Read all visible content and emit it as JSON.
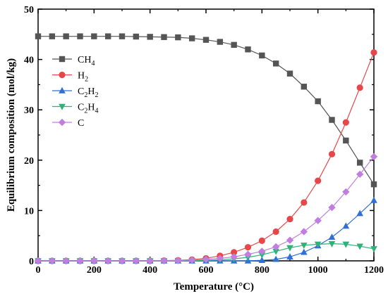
{
  "chart_data": {
    "type": "line",
    "xlabel": "Temperature (°C)",
    "ylabel": "Equilibrium composition (mol/kg)",
    "xlim": [
      0,
      1200
    ],
    "ylim": [
      0,
      50
    ],
    "xticks": [
      0,
      200,
      400,
      600,
      800,
      1000,
      1200
    ],
    "yticks": [
      0,
      10,
      20,
      30,
      40,
      50
    ],
    "grid": false,
    "legend_position": "top-left",
    "x": [
      0,
      50,
      100,
      150,
      200,
      250,
      300,
      350,
      400,
      450,
      500,
      550,
      600,
      650,
      700,
      750,
      800,
      850,
      900,
      950,
      1000,
      1050,
      1100,
      1150,
      1200
    ],
    "series": [
      {
        "name": "CH4",
        "sub": "4",
        "base": "CH",
        "color": "#555555",
        "marker": "square",
        "values": [
          44.6,
          44.6,
          44.6,
          44.6,
          44.6,
          44.6,
          44.6,
          44.55,
          44.5,
          44.45,
          44.4,
          44.2,
          43.9,
          43.5,
          42.9,
          42.0,
          40.8,
          39.2,
          37.2,
          34.6,
          31.7,
          28.0,
          23.9,
          19.5,
          15.2
        ]
      },
      {
        "name": "H2",
        "sub": "2",
        "base": "H",
        "color": "#e8474a",
        "marker": "circle",
        "values": [
          0,
          0,
          0,
          0,
          0,
          0,
          0,
          0,
          0,
          0.05,
          0.1,
          0.25,
          0.5,
          1.0,
          1.7,
          2.7,
          4.0,
          5.8,
          8.3,
          11.6,
          15.9,
          21.2,
          27.5,
          34.4,
          41.4
        ]
      },
      {
        "name": "C2H2",
        "sub": "2",
        "base": "C",
        "sub_mid": "2",
        "base2": "H",
        "color": "#2f6fd6",
        "marker": "triangle-up",
        "values": [
          0,
          0,
          0,
          0,
          0,
          0,
          0,
          0,
          0,
          0,
          0,
          0,
          0,
          0,
          0,
          0,
          0.1,
          0.3,
          0.8,
          1.7,
          3.0,
          4.7,
          6.9,
          9.4,
          12.0
        ]
      },
      {
        "name": "C2H4",
        "sub": "4",
        "base": "C",
        "sub_mid": "2",
        "base2": "H",
        "color": "#2db37a",
        "marker": "triangle-down",
        "values": [
          0,
          0,
          0,
          0,
          0,
          0,
          0,
          0,
          0,
          0,
          0.02,
          0.05,
          0.1,
          0.2,
          0.4,
          0.7,
          1.2,
          1.9,
          2.6,
          3.1,
          3.3,
          3.4,
          3.3,
          2.9,
          2.4
        ]
      },
      {
        "name": "C",
        "sub": "",
        "base": "C",
        "color": "#c07ee0",
        "marker": "diamond",
        "values": [
          0,
          0,
          0,
          0,
          0,
          0,
          0,
          0,
          0,
          0.02,
          0.05,
          0.15,
          0.3,
          0.5,
          0.8,
          1.3,
          1.9,
          2.8,
          4.1,
          5.8,
          8.0,
          10.6,
          13.7,
          17.2,
          20.7
        ]
      }
    ]
  }
}
